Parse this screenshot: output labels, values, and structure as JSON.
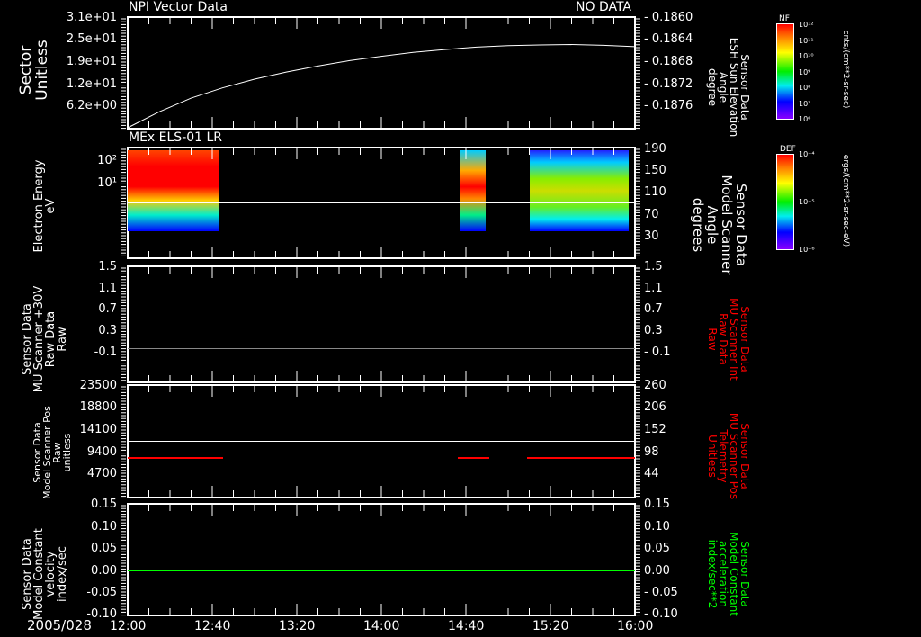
{
  "date": "2005/028",
  "time_ticks": [
    "12:00",
    "12:40",
    "13:20",
    "14:00",
    "14:40",
    "15:20",
    "16:00"
  ],
  "status": "NO DATA",
  "chart_data": [
    {
      "type": "line",
      "title": "NPI Vector Data",
      "ylabel": "Sector\nUnitless",
      "yticks": [
        "3.1e+01",
        "2.5e+01",
        "1.9e+01",
        "1.2e+01",
        "6.2e+00"
      ],
      "ylim": [
        0,
        31
      ],
      "right_ylabel": [
        "Sensor Data",
        "ESH Sun Elevation",
        "Angle",
        "degree"
      ],
      "right_yticks": [
        "- 0.1860",
        "- 0.1864",
        "- 0.1868",
        "- 0.1872",
        "- 0.1876"
      ],
      "x_hours": [
        0,
        0.25,
        0.5,
        0.75,
        1,
        1.25,
        1.5,
        1.75,
        2,
        2.25,
        2.5,
        2.75,
        3,
        3.25,
        3.5,
        3.75,
        4
      ],
      "values": [
        0,
        4.5,
        8.3,
        11.2,
        13.6,
        15.6,
        17.3,
        18.8,
        20.0,
        21.1,
        21.9,
        22.6,
        23.0,
        23.2,
        23.3,
        23.1,
        22.7
      ],
      "color": "#ffffff"
    },
    {
      "type": "heatmap",
      "title": "MEx ELS-01 LR",
      "ylabel": [
        "Electron Energy",
        "eV"
      ],
      "yticks": [
        "10²",
        "10¹"
      ],
      "right_ylabel": [
        "Sensor Data",
        "Model Scanner",
        "Angle",
        "degrees"
      ],
      "right_yticks": [
        "190",
        "150",
        "110",
        "70",
        "30"
      ],
      "data_intervals_hours": [
        [
          0,
          0.72
        ],
        [
          2.62,
          2.82
        ],
        [
          3.17,
          3.95
        ]
      ],
      "overlay_line_degrees": 88,
      "colorbar": {
        "label": "DEF",
        "units": "ergs/(cm**2-sr-sec-eV)",
        "ticks": [
          "10⁻⁴",
          "10⁻⁵",
          "10⁻⁶"
        ]
      }
    },
    {
      "type": "line",
      "ylabel": [
        "Sensor Data",
        "MU Scanner +30V",
        "Raw Data",
        "Raw"
      ],
      "yticks": [
        "1.5",
        "1.1",
        "0.7",
        "0.3",
        "-0.1"
      ],
      "ylim": [
        -0.3,
        1.5
      ],
      "right_ylabel": [
        "Sensor Data",
        "MU Scanner Int",
        "Raw Data",
        "Raw"
      ],
      "right_yticks": [
        "1.5",
        "1.1",
        "0.7",
        "0.3",
        "- 0.1"
      ],
      "value": -0.12,
      "color": "#ff0000"
    },
    {
      "type": "line",
      "ylabel": [
        "Sensor Data",
        "Model Scanner Pos",
        "Raw",
        "unitless"
      ],
      "yticks": [
        "23500",
        "18800",
        "14100",
        "9400",
        "4700"
      ],
      "ylim": [
        0,
        23500
      ],
      "right_ylabel": [
        "Sensor Data",
        "MU Scanner Pos",
        "Telemetry",
        "Unitless"
      ],
      "right_yticks": [
        "260",
        "206",
        "152",
        "98",
        "44"
      ],
      "white_line_value": 11800,
      "red_value": 8500,
      "red_intervals_hours": [
        [
          0,
          0.75
        ],
        [
          2.6,
          2.85
        ],
        [
          3.15,
          4
        ]
      ],
      "right_color": "#ff0000"
    },
    {
      "type": "line",
      "ylabel": [
        "Sensor Data",
        "Model Constant",
        "velocity",
        "index/sec"
      ],
      "yticks": [
        "0.15",
        "0.10",
        "0.05",
        "0.00",
        "-0.05",
        "-0.10"
      ],
      "ylim": [
        -0.1,
        0.15
      ],
      "right_ylabel": [
        "Sensor Data",
        "Model Constant",
        "acceleration",
        "index/sec**2"
      ],
      "right_yticks": [
        "0.15",
        "0.10",
        "0.05",
        "0.00",
        "- 0.05",
        "- 0.10"
      ],
      "value": 0.0,
      "color": "#00ff00"
    }
  ],
  "colorbar_nf": {
    "label": "NF",
    "units": "cnts/(cm**2-sr-sec)",
    "ticks": [
      "10¹²",
      "10¹¹",
      "10¹⁰",
      "10⁹",
      "10⁸",
      "10⁷",
      "10⁶"
    ]
  }
}
